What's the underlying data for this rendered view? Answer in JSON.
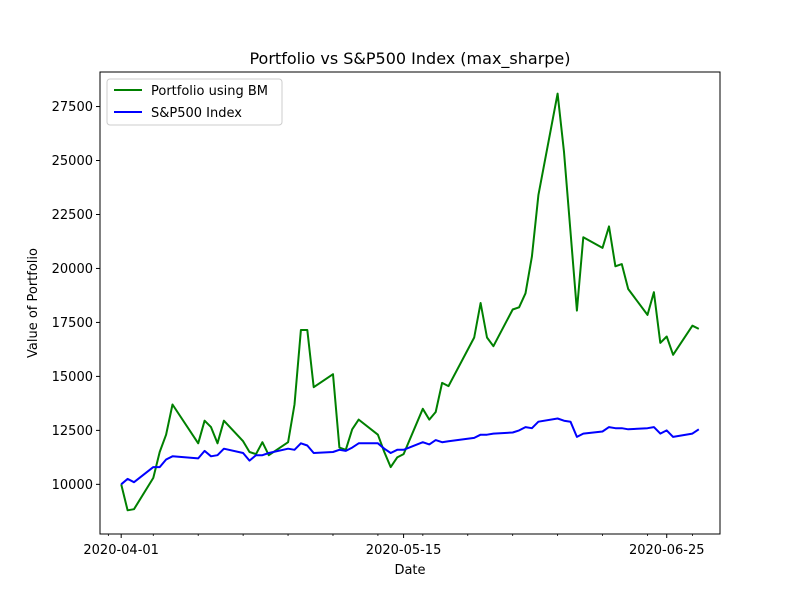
{
  "chart_data": {
    "type": "line",
    "title": "Portfolio vs S&P500 Index (max_sharpe)",
    "xlabel": "Date",
    "ylabel": "Value of Portfolio",
    "x_ticks": [
      "2020-04-01",
      "2020-05-15",
      "2020-06-25"
    ],
    "y_ticks": [
      10000,
      12500,
      15000,
      17500,
      20000,
      22500,
      25000,
      27500
    ],
    "ylim": [
      7700,
      29100
    ],
    "grid": false,
    "legend_position": "top-left",
    "x": [
      "2020-04-01",
      "2020-04-02",
      "2020-04-03",
      "2020-04-06",
      "2020-04-07",
      "2020-04-08",
      "2020-04-09",
      "2020-04-13",
      "2020-04-14",
      "2020-04-15",
      "2020-04-16",
      "2020-04-17",
      "2020-04-20",
      "2020-04-21",
      "2020-04-22",
      "2020-04-23",
      "2020-04-24",
      "2020-04-27",
      "2020-04-28",
      "2020-04-29",
      "2020-04-30",
      "2020-05-01",
      "2020-05-04",
      "2020-05-05",
      "2020-05-06",
      "2020-05-07",
      "2020-05-08",
      "2020-05-11",
      "2020-05-12",
      "2020-05-13",
      "2020-05-14",
      "2020-05-15",
      "2020-05-18",
      "2020-05-19",
      "2020-05-20",
      "2020-05-21",
      "2020-05-22",
      "2020-05-26",
      "2020-05-27",
      "2020-05-28",
      "2020-05-29",
      "2020-06-01",
      "2020-06-02",
      "2020-06-03",
      "2020-06-04",
      "2020-06-05",
      "2020-06-08",
      "2020-06-09",
      "2020-06-10",
      "2020-06-11",
      "2020-06-12",
      "2020-06-15",
      "2020-06-16",
      "2020-06-17",
      "2020-06-18",
      "2020-06-19",
      "2020-06-22",
      "2020-06-23",
      "2020-06-24",
      "2020-06-25",
      "2020-06-26",
      "2020-06-29",
      "2020-06-30"
    ],
    "series": [
      {
        "name": "Portfolio using BM",
        "color": "#008000",
        "values": [
          10000,
          8800,
          8850,
          10300,
          11500,
          12300,
          13700,
          11900,
          12950,
          12650,
          11900,
          12950,
          12000,
          11500,
          11400,
          11950,
          11350,
          11950,
          13700,
          17150,
          17150,
          14500,
          15100,
          11700,
          11600,
          12550,
          13000,
          12300,
          11500,
          10800,
          11250,
          11400,
          13500,
          13000,
          13350,
          14700,
          14550,
          16800,
          18400,
          16800,
          16400,
          18100,
          18200,
          18850,
          20550,
          23400,
          28100,
          25400,
          21700,
          18050,
          21450,
          20950,
          21950,
          20100,
          20200,
          19050,
          17850,
          18900,
          16550,
          16850,
          16000,
          17350,
          17200
        ]
      },
      {
        "name": "S&P500 Index",
        "color": "#0000ff",
        "values": [
          10000,
          10250,
          10100,
          10800,
          10800,
          11150,
          11300,
          11200,
          11550,
          11300,
          11350,
          11650,
          11450,
          11100,
          11350,
          11350,
          11450,
          11650,
          11600,
          11900,
          11800,
          11450,
          11500,
          11600,
          11550,
          11700,
          11900,
          11900,
          11650,
          11450,
          11600,
          11600,
          11950,
          11850,
          12050,
          11950,
          12000,
          12150,
          12300,
          12300,
          12350,
          12400,
          12500,
          12650,
          12600,
          12900,
          13050,
          12950,
          12900,
          12200,
          12350,
          12450,
          12650,
          12600,
          12600,
          12550,
          12600,
          12650,
          12350,
          12500,
          12200,
          12350,
          12550
        ]
      }
    ]
  }
}
